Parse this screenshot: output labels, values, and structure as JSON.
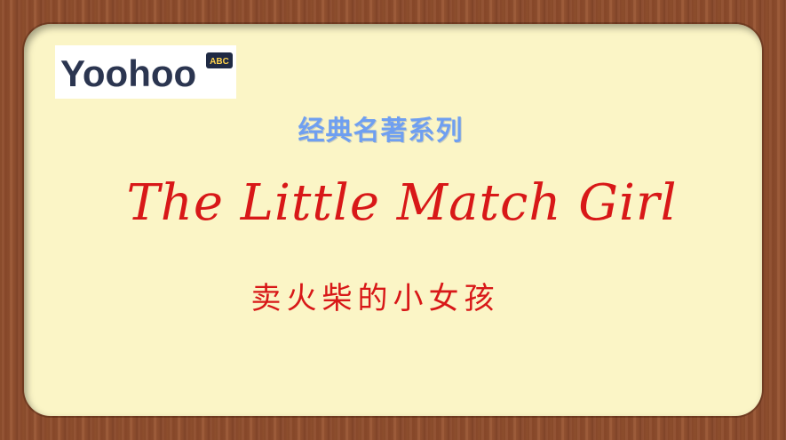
{
  "logo": {
    "text": "Yoohoo",
    "badge": "ABC"
  },
  "subtitle": "经典名著系列",
  "title": "The Little Match Girl",
  "chinese_title": "卖火柴的小女孩",
  "colors": {
    "frame_wood": "#8f4e2d",
    "panel": "#fbf5c6",
    "subtitle": "#6f9ff0",
    "title": "#d81818",
    "logo_text": "#2b3550"
  }
}
